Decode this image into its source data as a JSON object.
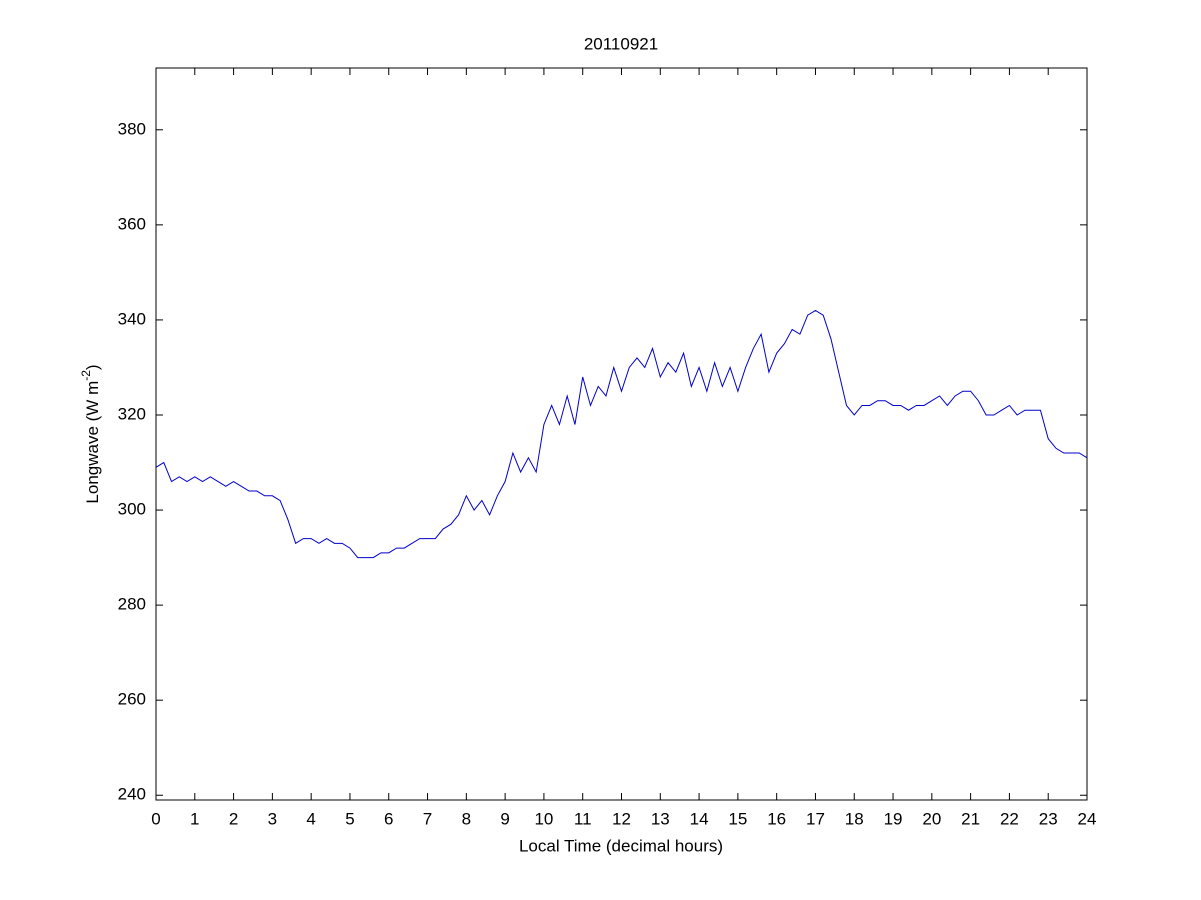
{
  "chart_data": {
    "type": "line",
    "title": "20110921",
    "xlabel": "Local Time (decimal hours)",
    "ylabel": {
      "text": "Longwave (W m",
      "superscript": "-2",
      "suffix": ")"
    },
    "xlim": [
      0,
      24
    ],
    "xticks": [
      0,
      1,
      2,
      3,
      4,
      5,
      6,
      7,
      8,
      9,
      10,
      11,
      12,
      13,
      14,
      15,
      16,
      17,
      18,
      19,
      20,
      21,
      22,
      23,
      24
    ],
    "ylim": [
      239,
      393
    ],
    "yticks": [
      240,
      260,
      280,
      300,
      320,
      340,
      360,
      380
    ],
    "grid": false,
    "series": [
      {
        "color": "#0000cc",
        "x": [
          0,
          0.2,
          0.4,
          0.6,
          0.8,
          1.0,
          1.2,
          1.4,
          1.6,
          1.8,
          2.0,
          2.2,
          2.4,
          2.6,
          2.8,
          3.0,
          3.2,
          3.4,
          3.6,
          3.8,
          4.0,
          4.2,
          4.4,
          4.6,
          4.8,
          5.0,
          5.2,
          5.4,
          5.6,
          5.8,
          6.0,
          6.2,
          6.4,
          6.6,
          6.8,
          7.0,
          7.2,
          7.4,
          7.6,
          7.8,
          8.0,
          8.2,
          8.4,
          8.6,
          8.8,
          9.0,
          9.2,
          9.4,
          9.6,
          9.8,
          10.0,
          10.2,
          10.4,
          10.6,
          10.8,
          11.0,
          11.2,
          11.4,
          11.6,
          11.8,
          12.0,
          12.2,
          12.4,
          12.6,
          12.8,
          13.0,
          13.2,
          13.4,
          13.6,
          13.8,
          14.0,
          14.2,
          14.4,
          14.6,
          14.8,
          15.0,
          15.2,
          15.4,
          15.6,
          15.8,
          16.0,
          16.2,
          16.4,
          16.6,
          16.8,
          17.0,
          17.2,
          17.4,
          17.6,
          17.8,
          18.0,
          18.2,
          18.4,
          18.6,
          18.8,
          19.0,
          19.2,
          19.4,
          19.6,
          19.8,
          20.0,
          20.2,
          20.4,
          20.6,
          20.8,
          21.0,
          21.2,
          21.4,
          21.6,
          21.8,
          22.0,
          22.2,
          22.4,
          22.6,
          22.8,
          23.0,
          23.2,
          23.4,
          23.6,
          23.8,
          24.0
        ],
        "values": [
          309,
          310,
          306,
          307,
          306,
          307,
          306,
          307,
          306,
          305,
          306,
          305,
          304,
          304,
          303,
          303,
          302,
          298,
          293,
          294,
          294,
          293,
          294,
          293,
          293,
          292,
          290,
          290,
          290,
          291,
          291,
          292,
          292,
          293,
          294,
          294,
          294,
          296,
          297,
          299,
          303,
          300,
          302,
          299,
          303,
          306,
          312,
          308,
          311,
          308,
          318,
          322,
          318,
          324,
          318,
          328,
          322,
          326,
          324,
          330,
          325,
          330,
          332,
          330,
          334,
          328,
          331,
          329,
          333,
          326,
          330,
          325,
          331,
          326,
          330,
          325,
          330,
          334,
          337,
          329,
          333,
          335,
          338,
          337,
          341,
          342,
          341,
          336,
          329,
          322,
          320,
          322,
          322,
          323,
          323,
          322,
          322,
          321,
          322,
          322,
          323,
          324,
          322,
          324,
          325,
          325,
          323,
          320,
          320,
          321,
          322,
          320,
          321,
          321,
          321,
          315,
          313,
          312,
          312,
          312,
          311
        ]
      }
    ]
  }
}
